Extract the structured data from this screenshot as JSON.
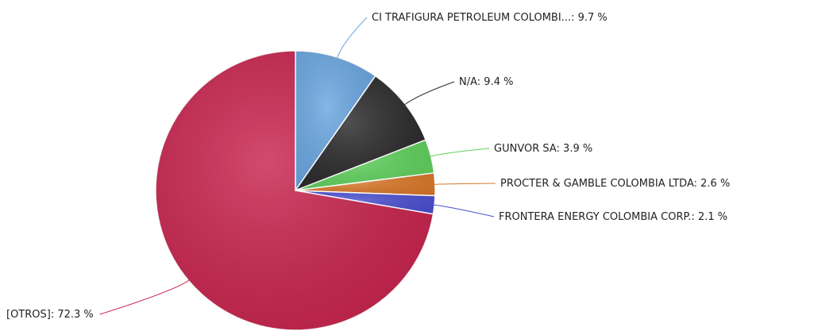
{
  "chart_data": {
    "type": "pie",
    "categories": [
      "CI TRAFIGURA PETROLEUM COLOMBI...",
      "N/A",
      "GUNVOR SA",
      "PROCTER & GAMBLE COLOMBIA LTDA",
      "FRONTERA ENERGY COLOMBIA CORP.",
      "[OTROS]"
    ],
    "values": [
      9.7,
      9.4,
      3.9,
      2.6,
      2.1,
      72.3
    ],
    "value_labels": [
      ": 9.7 %",
      ": 9.4 %",
      ": 3.9 %",
      ": 2.6 %",
      ": 2.1 %",
      ": 72.3 %"
    ],
    "colors": [
      "#6aa6e0",
      "#2a2a2c",
      "#5fd05c",
      "#d9782a",
      "#4a4fd0",
      "#c8244e"
    ]
  }
}
